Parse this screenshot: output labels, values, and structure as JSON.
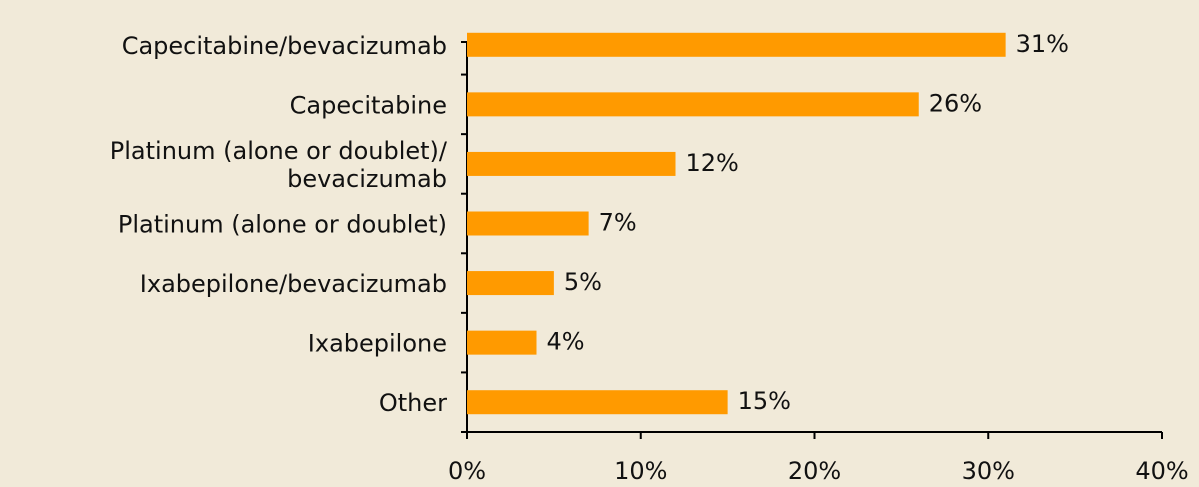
{
  "chart_data": {
    "type": "bar",
    "orientation": "horizontal",
    "categories": [
      "Capecitabine/bevacizumab",
      "Capecitabine",
      "Platinum (alone or doublet)/\nbevacizumab",
      "Platinum (alone or doublet)",
      "Ixabepilone/bevacizumab",
      "Ixabepilone",
      "Other"
    ],
    "values": [
      31,
      26,
      12,
      7,
      5,
      4,
      15
    ],
    "value_labels": [
      "31%",
      "26%",
      "12%",
      "7%",
      "5%",
      "4%",
      "15%"
    ],
    "color": "#ff9a00",
    "xlim": [
      0,
      40
    ],
    "xticks": [
      {
        "value": 0,
        "label": "0%"
      },
      {
        "value": 10,
        "label": "10%"
      },
      {
        "value": 20,
        "label": "20%"
      },
      {
        "value": 30,
        "label": "30%"
      },
      {
        "value": 40,
        "label": "40%"
      }
    ]
  }
}
